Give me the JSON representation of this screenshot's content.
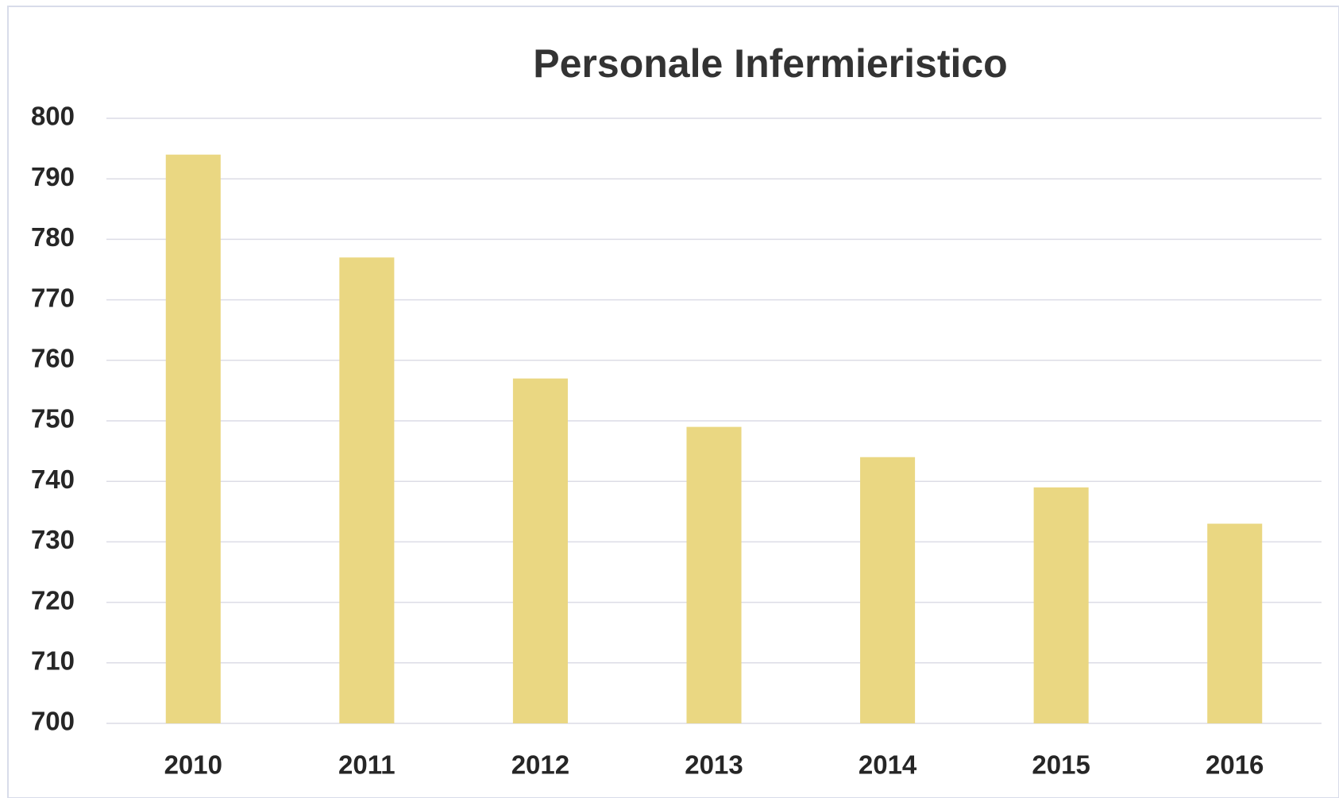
{
  "chart_data": {
    "type": "bar",
    "title": "Personale Infermieristico",
    "categories": [
      "2010",
      "2011",
      "2012",
      "2013",
      "2014",
      "2015",
      "2016"
    ],
    "values": [
      794,
      777,
      757,
      749,
      744,
      739,
      733
    ],
    "color": "#ead782",
    "ylim": [
      700,
      800
    ],
    "yticks": [
      700,
      710,
      720,
      730,
      740,
      750,
      760,
      770,
      780,
      790,
      800
    ],
    "grid": true
  }
}
